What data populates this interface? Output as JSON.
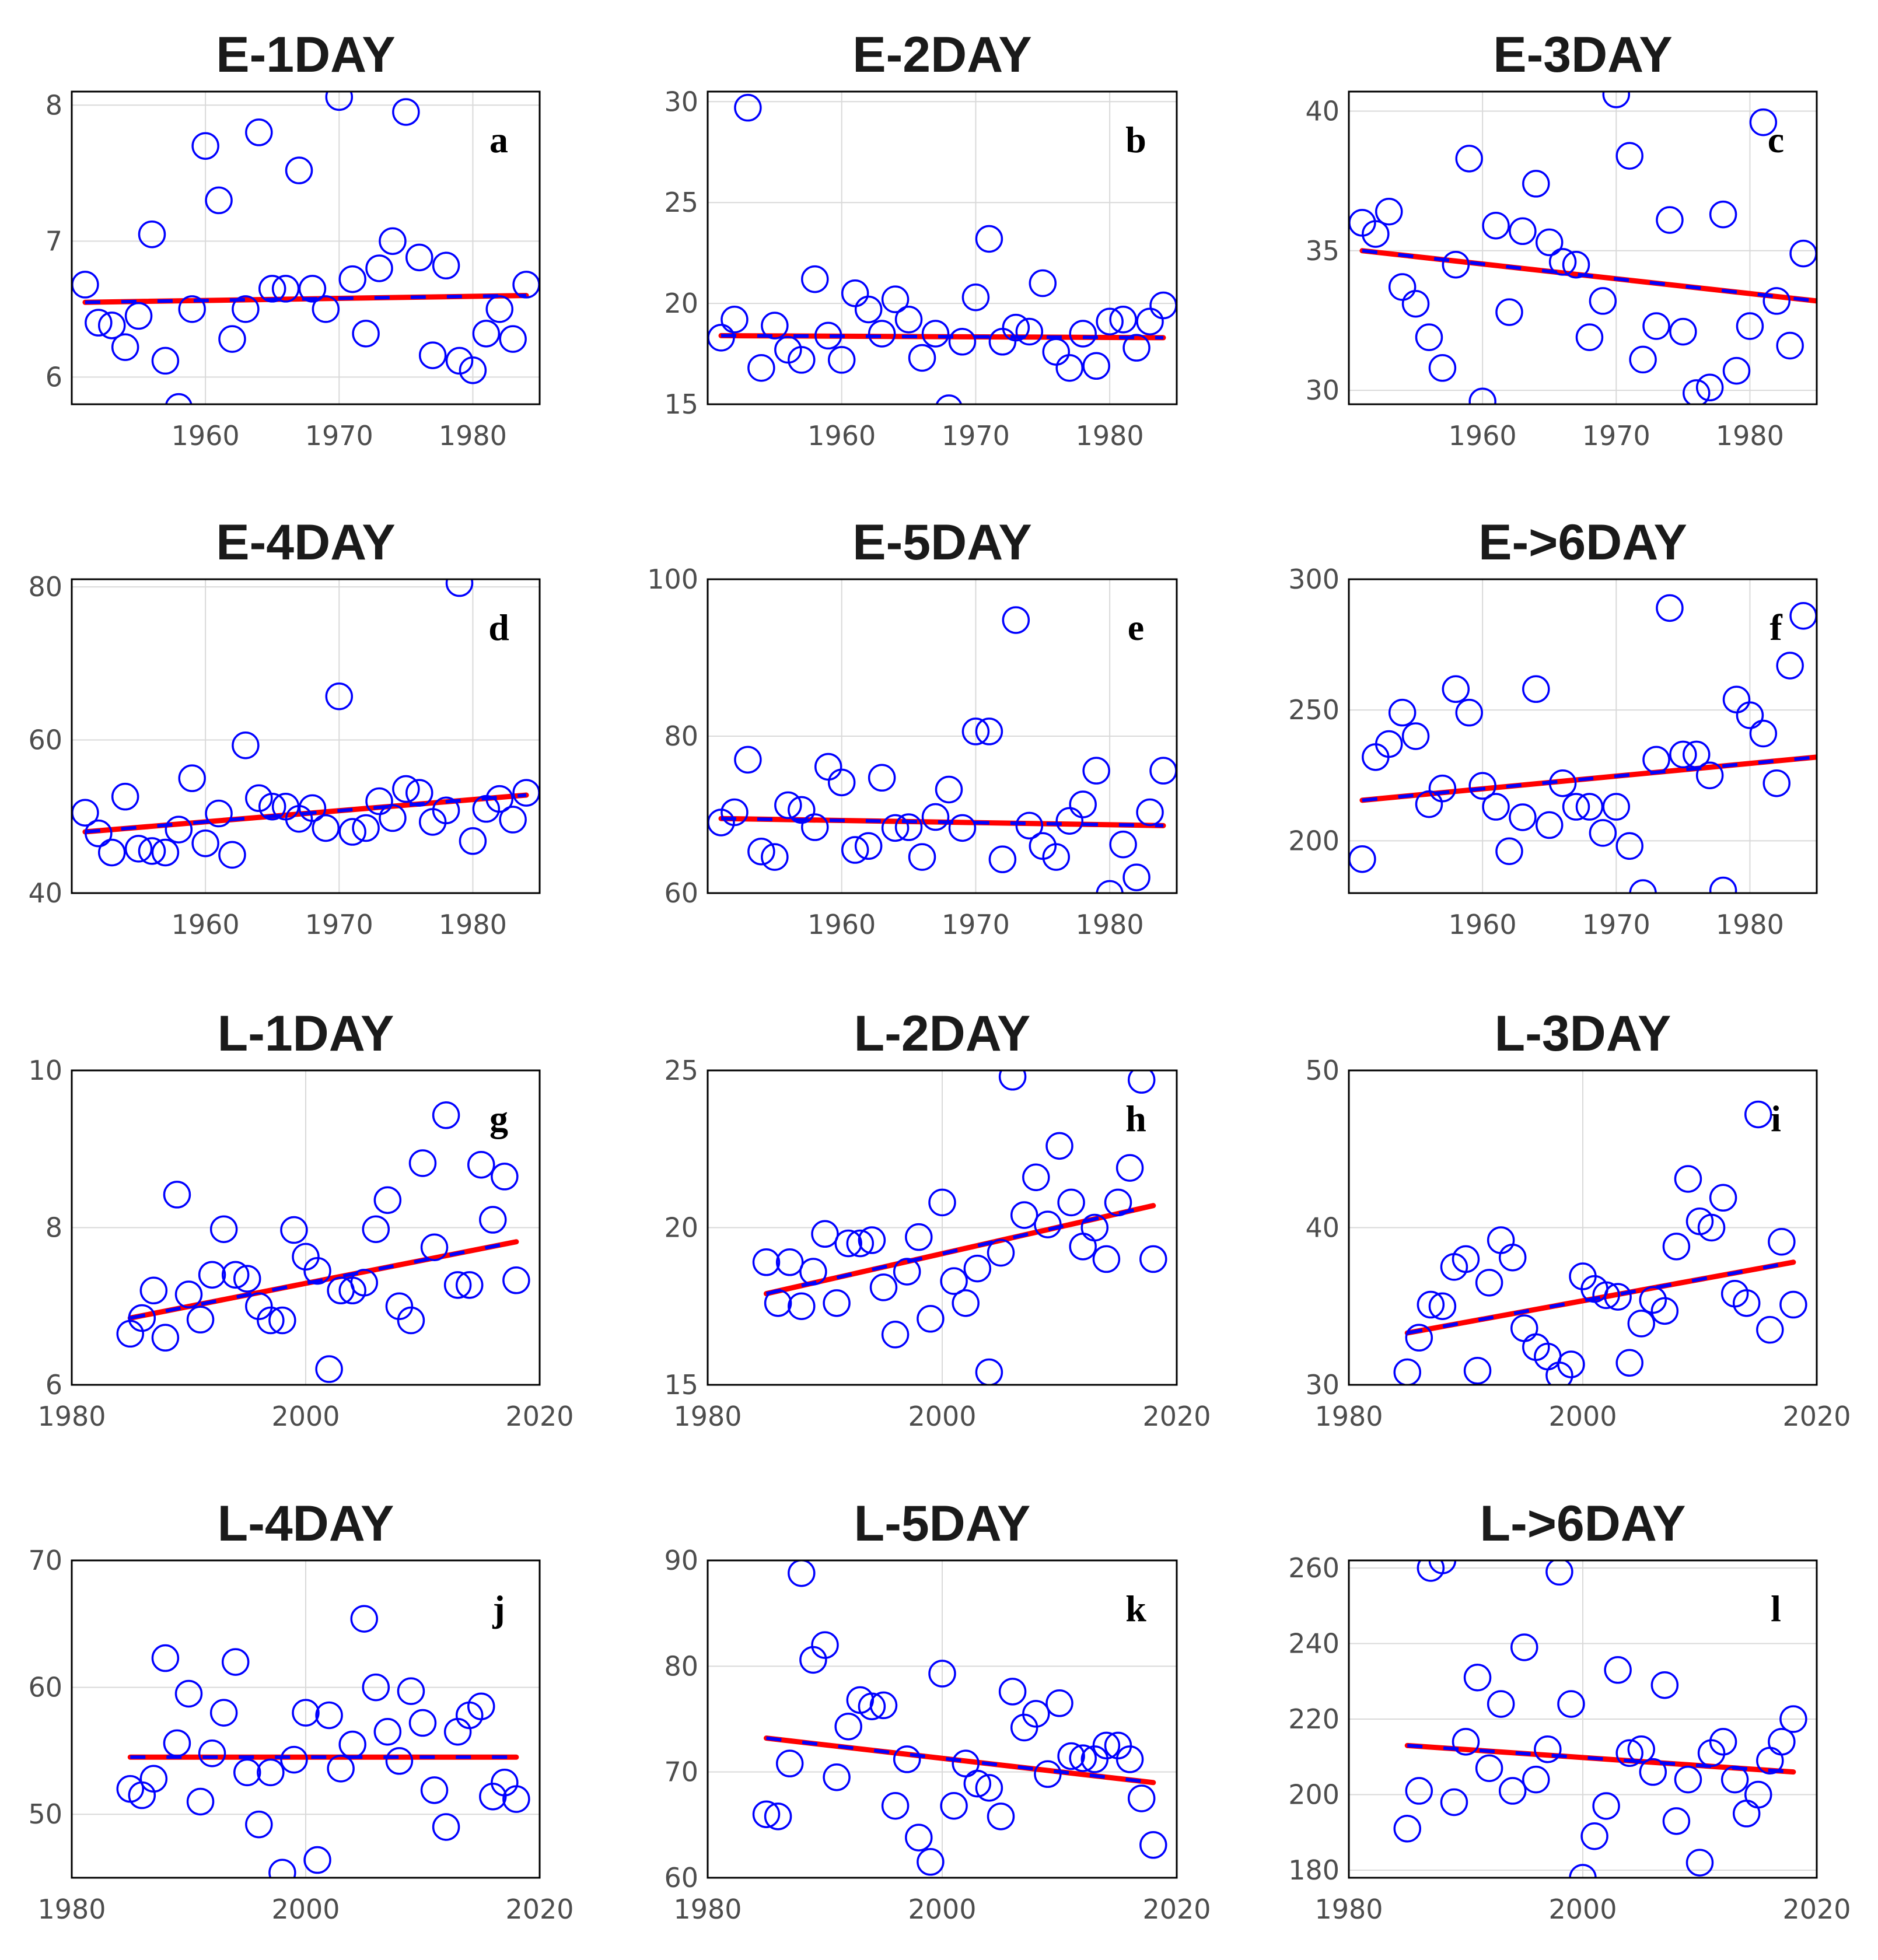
{
  "chart_data": [
    {
      "id": "a",
      "title": "E-1DAY",
      "letter": "a",
      "type": "scatter",
      "xlim": [
        1950,
        1985
      ],
      "ylim": [
        5.8,
        8.1
      ],
      "xticks": [
        1960,
        1970,
        1980
      ],
      "xticklabels": [
        "1960",
        "1970",
        "1980"
      ],
      "yticks": [
        6,
        7,
        8
      ],
      "yticklabels": [
        "6",
        "7",
        "8"
      ],
      "x": [
        1951,
        1952,
        1953,
        1954,
        1955,
        1956,
        1957,
        1958,
        1959,
        1960,
        1961,
        1962,
        1963,
        1964,
        1965,
        1966,
        1967,
        1968,
        1969,
        1970,
        1971,
        1972,
        1973,
        1974,
        1975,
        1976,
        1977,
        1978,
        1979,
        1980,
        1981,
        1982,
        1983,
        1984
      ],
      "y": [
        6.68,
        6.4,
        6.38,
        6.22,
        6.45,
        7.05,
        6.12,
        5.78,
        6.5,
        7.7,
        7.3,
        6.28,
        6.5,
        7.8,
        6.65,
        6.65,
        7.52,
        6.65,
        6.5,
        8.06,
        6.72,
        6.32,
        6.8,
        7.0,
        7.95,
        6.88,
        6.16,
        6.82,
        6.12,
        6.05,
        6.32,
        6.5,
        6.28,
        6.68
      ],
      "trend": {
        "x": [
          1951,
          1984
        ],
        "y": [
          6.55,
          6.6
        ]
      }
    },
    {
      "id": "b",
      "title": "E-2DAY",
      "letter": "b",
      "type": "scatter",
      "xlim": [
        1950,
        1985
      ],
      "ylim": [
        15,
        30.5
      ],
      "xticks": [
        1960,
        1970,
        1980
      ],
      "xticklabels": [
        "1960",
        "1970",
        "1980"
      ],
      "yticks": [
        15,
        20,
        25,
        30
      ],
      "yticklabels": [
        "15",
        "20",
        "25",
        "30"
      ],
      "x": [
        1951,
        1952,
        1953,
        1954,
        1955,
        1956,
        1957,
        1958,
        1959,
        1960,
        1961,
        1962,
        1963,
        1964,
        1965,
        1966,
        1967,
        1968,
        1969,
        1970,
        1971,
        1972,
        1973,
        1974,
        1975,
        1976,
        1977,
        1978,
        1979,
        1980,
        1981,
        1982,
        1983,
        1984
      ],
      "y": [
        18.3,
        19.2,
        29.7,
        16.8,
        18.9,
        17.7,
        17.2,
        21.2,
        18.4,
        17.2,
        20.5,
        19.7,
        18.5,
        20.2,
        19.2,
        17.3,
        18.5,
        14.8,
        18.1,
        20.3,
        23.2,
        18.1,
        18.8,
        18.6,
        21.0,
        17.6,
        16.8,
        18.5,
        16.9,
        19.1,
        19.2,
        17.8,
        19.1,
        19.9
      ],
      "trend": {
        "x": [
          1951,
          1984
        ],
        "y": [
          18.4,
          18.3
        ]
      }
    },
    {
      "id": "c",
      "title": "E-3DAY",
      "letter": "c",
      "type": "scatter",
      "xlim": [
        1950,
        1985
      ],
      "ylim": [
        29.5,
        40.7
      ],
      "xticks": [
        1960,
        1970,
        1980
      ],
      "xticklabels": [
        "1960",
        "1970",
        "1980"
      ],
      "yticks": [
        30,
        35,
        40
      ],
      "yticklabels": [
        "30",
        "35",
        "40"
      ],
      "x": [
        1951,
        1952,
        1953,
        1954,
        1955,
        1956,
        1957,
        1958,
        1959,
        1960,
        1961,
        1962,
        1963,
        1964,
        1965,
        1966,
        1967,
        1968,
        1969,
        1970,
        1971,
        1972,
        1973,
        1974,
        1975,
        1976,
        1977,
        1978,
        1979,
        1980,
        1981,
        1982,
        1983,
        1984
      ],
      "y": [
        36.0,
        35.6,
        36.4,
        33.7,
        33.1,
        31.9,
        30.8,
        34.5,
        38.3,
        29.6,
        35.9,
        32.8,
        35.7,
        37.4,
        35.3,
        34.6,
        34.5,
        31.9,
        33.2,
        40.6,
        38.4,
        31.1,
        32.3,
        36.1,
        32.1,
        29.9,
        30.1,
        36.3,
        30.7,
        32.3,
        39.6,
        33.2,
        31.6,
        34.9
      ],
      "trend": {
        "x": [
          1951,
          1985
        ],
        "y": [
          35.0,
          33.2
        ]
      }
    },
    {
      "id": "d",
      "title": "E-4DAY",
      "letter": "d",
      "type": "scatter",
      "xlim": [
        1950,
        1985
      ],
      "ylim": [
        40,
        81
      ],
      "xticks": [
        1960,
        1970,
        1980
      ],
      "xticklabels": [
        "1960",
        "1970",
        "1980"
      ],
      "yticks": [
        40,
        60,
        80
      ],
      "yticklabels": [
        "40",
        "60",
        "80"
      ],
      "x": [
        1951,
        1952,
        1953,
        1954,
        1955,
        1956,
        1957,
        1958,
        1959,
        1960,
        1961,
        1962,
        1963,
        1964,
        1965,
        1966,
        1967,
        1968,
        1969,
        1970,
        1971,
        1972,
        1973,
        1974,
        1975,
        1976,
        1977,
        1978,
        1979,
        1980,
        1981,
        1982,
        1983,
        1984
      ],
      "y": [
        50.5,
        47.8,
        45.3,
        52.6,
        45.8,
        45.5,
        45.3,
        48.3,
        55.0,
        46.5,
        50.4,
        45.0,
        59.3,
        52.4,
        51.3,
        51.3,
        49.7,
        51.1,
        48.5,
        65.7,
        48.0,
        48.5,
        52.0,
        49.8,
        53.6,
        53.1,
        49.3,
        50.8,
        80.5,
        46.8,
        51.0,
        52.3,
        49.6,
        53.1
      ],
      "trend": {
        "x": [
          1951,
          1984
        ],
        "y": [
          48.0,
          52.8
        ]
      }
    },
    {
      "id": "e",
      "title": "E-5DAY",
      "letter": "e",
      "type": "scatter",
      "xlim": [
        1950,
        1985
      ],
      "ylim": [
        60,
        100
      ],
      "xticks": [
        1960,
        1970,
        1980
      ],
      "xticklabels": [
        "1960",
        "1970",
        "1980"
      ],
      "yticks": [
        60,
        80,
        100
      ],
      "yticklabels": [
        "60",
        "80",
        "100"
      ],
      "x": [
        1951,
        1952,
        1953,
        1954,
        1955,
        1956,
        1957,
        1958,
        1959,
        1960,
        1961,
        1962,
        1963,
        1964,
        1965,
        1966,
        1967,
        1968,
        1969,
        1970,
        1971,
        1972,
        1973,
        1974,
        1975,
        1976,
        1977,
        1978,
        1979,
        1980,
        1981,
        1982,
        1983,
        1984
      ],
      "y": [
        69.0,
        70.3,
        77.0,
        65.3,
        64.6,
        71.2,
        70.6,
        68.4,
        76.1,
        74.1,
        65.5,
        66.0,
        74.7,
        68.3,
        68.4,
        64.6,
        69.7,
        73.2,
        68.3,
        80.6,
        80.6,
        64.3,
        94.8,
        68.6,
        66.0,
        64.6,
        69.2,
        71.3,
        75.6,
        59.9,
        66.2,
        62.0,
        70.3,
        75.6
      ],
      "trend": {
        "x": [
          1951,
          1984
        ],
        "y": [
          69.5,
          68.6
        ]
      }
    },
    {
      "id": "f",
      "title": "E->6DAY",
      "letter": "f",
      "type": "scatter",
      "xlim": [
        1950,
        1985
      ],
      "ylim": [
        180,
        300
      ],
      "xticks": [
        1960,
        1970,
        1980
      ],
      "xticklabels": [
        "1960",
        "1970",
        "1980"
      ],
      "yticks": [
        200,
        250,
        300
      ],
      "yticklabels": [
        "200",
        "250",
        "300"
      ],
      "x": [
        1951,
        1952,
        1953,
        1954,
        1955,
        1956,
        1957,
        1958,
        1959,
        1960,
        1961,
        1962,
        1963,
        1964,
        1965,
        1966,
        1967,
        1968,
        1969,
        1970,
        1971,
        1972,
        1973,
        1974,
        1975,
        1976,
        1977,
        1978,
        1979,
        1980,
        1981,
        1982,
        1983,
        1984
      ],
      "y": [
        193,
        232,
        237,
        249,
        240,
        214,
        220,
        258,
        249,
        221,
        213,
        196,
        209,
        258,
        206,
        222,
        213,
        213,
        203,
        213,
        198,
        180,
        231,
        289,
        233,
        233,
        225,
        181,
        254,
        248,
        241,
        222,
        267,
        286
      ],
      "trend": {
        "x": [
          1951,
          1985
        ],
        "y": [
          215.5,
          232
        ]
      }
    },
    {
      "id": "g",
      "title": "L-1DAY",
      "letter": "g",
      "type": "scatter",
      "xlim": [
        1980,
        2020
      ],
      "ylim": [
        6,
        10
      ],
      "xticks": [
        1980,
        2000,
        2020
      ],
      "xticklabels": [
        "1980",
        "2000",
        "2020"
      ],
      "yticks": [
        6,
        8,
        10
      ],
      "yticklabels": [
        "6",
        "8",
        "10"
      ],
      "x": [
        1985,
        1986,
        1987,
        1988,
        1989,
        1990,
        1991,
        1992,
        1993,
        1994,
        1995,
        1996,
        1997,
        1998,
        1999,
        2000,
        2001,
        2002,
        2003,
        2004,
        2005,
        2006,
        2007,
        2008,
        2009,
        2010,
        2011,
        2012,
        2013,
        2014,
        2015,
        2016,
        2017,
        2018
      ],
      "y": [
        6.65,
        6.85,
        7.2,
        6.6,
        8.42,
        7.15,
        6.83,
        7.4,
        7.98,
        7.4,
        7.35,
        7.0,
        6.82,
        6.82,
        7.97,
        7.63,
        7.45,
        6.2,
        7.2,
        7.2,
        7.3,
        7.98,
        8.35,
        7.0,
        6.82,
        8.82,
        7.75,
        9.43,
        7.27,
        7.27,
        8.8,
        8.1,
        8.65,
        7.33
      ],
      "trend": {
        "x": [
          1985,
          2018
        ],
        "y": [
          6.85,
          7.82
        ]
      }
    },
    {
      "id": "h",
      "title": "L-2DAY",
      "letter": "h",
      "type": "scatter",
      "xlim": [
        1980,
        2020
      ],
      "ylim": [
        15,
        25
      ],
      "xticks": [
        1980,
        2000,
        2020
      ],
      "xticklabels": [
        "1980",
        "2000",
        "2020"
      ],
      "yticks": [
        15,
        20,
        25
      ],
      "yticklabels": [
        "15",
        "20",
        "25"
      ],
      "x": [
        1985,
        1986,
        1987,
        1988,
        1989,
        1990,
        1991,
        1992,
        1993,
        1994,
        1995,
        1996,
        1997,
        1998,
        1999,
        2000,
        2001,
        2002,
        2003,
        2004,
        2005,
        2006,
        2007,
        2008,
        2009,
        2010,
        2011,
        2012,
        2013,
        2014,
        2015,
        2016,
        2017,
        2018
      ],
      "y": [
        18.9,
        17.6,
        18.9,
        17.5,
        18.6,
        19.8,
        17.6,
        19.5,
        19.5,
        19.6,
        18.1,
        16.6,
        18.6,
        19.7,
        17.1,
        20.8,
        18.3,
        17.6,
        18.7,
        15.4,
        19.2,
        24.8,
        20.4,
        21.6,
        20.1,
        22.6,
        20.8,
        19.4,
        20.0,
        19.0,
        20.8,
        21.9,
        24.7,
        19.0
      ],
      "trend": {
        "x": [
          1985,
          2018
        ],
        "y": [
          17.9,
          20.7
        ]
      }
    },
    {
      "id": "i",
      "title": "L-3DAY",
      "letter": "i",
      "type": "scatter",
      "xlim": [
        1980,
        2020
      ],
      "ylim": [
        30,
        50
      ],
      "xticks": [
        1980,
        2000,
        2020
      ],
      "xticklabels": [
        "1980",
        "2000",
        "2020"
      ],
      "yticks": [
        30,
        40,
        50
      ],
      "yticklabels": [
        "30",
        "40",
        "50"
      ],
      "x": [
        1985,
        1986,
        1987,
        1988,
        1989,
        1990,
        1991,
        1992,
        1993,
        1994,
        1995,
        1996,
        1997,
        1998,
        1999,
        2000,
        2001,
        2002,
        2003,
        2004,
        2005,
        2006,
        2007,
        2008,
        2009,
        2010,
        2011,
        2012,
        2013,
        2014,
        2015,
        2016,
        2017,
        2018
      ],
      "y": [
        30.8,
        33.0,
        35.1,
        35.0,
        37.5,
        38.0,
        30.9,
        36.5,
        39.2,
        38.1,
        33.6,
        32.4,
        31.8,
        30.6,
        31.3,
        36.9,
        36.1,
        35.7,
        35.6,
        31.4,
        33.9,
        35.4,
        34.7,
        38.8,
        43.1,
        40.4,
        40.0,
        41.9,
        35.8,
        35.2,
        47.2,
        33.5,
        39.1,
        35.1
      ],
      "trend": {
        "x": [
          1985,
          2018
        ],
        "y": [
          33.3,
          37.8
        ]
      }
    },
    {
      "id": "j",
      "title": "L-4DAY",
      "letter": "j",
      "type": "scatter",
      "xlim": [
        1980,
        2020
      ],
      "ylim": [
        45,
        70
      ],
      "xticks": [
        1980,
        2000,
        2020
      ],
      "xticklabels": [
        "1980",
        "2000",
        "2020"
      ],
      "yticks": [
        50,
        60,
        70
      ],
      "yticklabels": [
        "50",
        "60",
        "70"
      ],
      "x": [
        1985,
        1986,
        1987,
        1988,
        1989,
        1990,
        1991,
        1992,
        1993,
        1994,
        1995,
        1996,
        1997,
        1998,
        1999,
        2000,
        2001,
        2002,
        2003,
        2004,
        2005,
        2006,
        2007,
        2008,
        2009,
        2010,
        2011,
        2012,
        2013,
        2014,
        2015,
        2016,
        2017,
        2018
      ],
      "y": [
        52.0,
        51.5,
        52.8,
        62.3,
        55.6,
        59.5,
        51.0,
        54.8,
        58.0,
        62.0,
        53.3,
        49.2,
        53.3,
        45.4,
        54.3,
        58.0,
        46.4,
        57.8,
        53.6,
        55.5,
        65.4,
        60.0,
        56.5,
        54.2,
        59.7,
        57.2,
        51.9,
        49.0,
        56.5,
        57.8,
        58.5,
        51.4,
        52.5,
        51.2
      ],
      "trend": {
        "x": [
          1985,
          2018
        ],
        "y": [
          54.5,
          54.5
        ]
      }
    },
    {
      "id": "k",
      "title": "L-5DAY",
      "letter": "k",
      "type": "scatter",
      "xlim": [
        1980,
        2020
      ],
      "ylim": [
        60,
        90
      ],
      "xticks": [
        1980,
        2000,
        2020
      ],
      "xticklabels": [
        "1980",
        "2000",
        "2020"
      ],
      "yticks": [
        60,
        70,
        80,
        90
      ],
      "yticklabels": [
        "60",
        "70",
        "80",
        "90"
      ],
      "x": [
        1985,
        1986,
        1987,
        1988,
        1989,
        1990,
        1991,
        1992,
        1993,
        1994,
        1995,
        1996,
        1997,
        1998,
        1999,
        2000,
        2001,
        2002,
        2003,
        2004,
        2005,
        2006,
        2007,
        2008,
        2009,
        2010,
        2011,
        2012,
        2013,
        2014,
        2015,
        2016,
        2017,
        2018
      ],
      "y": [
        66.0,
        65.8,
        70.8,
        88.8,
        80.6,
        82.0,
        69.5,
        74.3,
        76.8,
        76.2,
        76.3,
        66.8,
        71.2,
        63.8,
        61.5,
        79.3,
        66.8,
        70.8,
        68.9,
        68.5,
        65.8,
        77.6,
        74.2,
        75.5,
        69.8,
        76.5,
        71.5,
        71.3,
        71.2,
        72.5,
        72.5,
        71.2,
        67.5,
        63.1
      ],
      "trend": {
        "x": [
          1985,
          2018
        ],
        "y": [
          73.2,
          69.0
        ]
      }
    },
    {
      "id": "l",
      "title": "L->6DAY",
      "letter": "l",
      "type": "scatter",
      "xlim": [
        1980,
        2020
      ],
      "ylim": [
        178,
        262
      ],
      "xticks": [
        1980,
        2000,
        2020
      ],
      "xticklabels": [
        "1980",
        "2000",
        "2020"
      ],
      "yticks": [
        180,
        200,
        220,
        240,
        260
      ],
      "yticklabels": [
        "180",
        "200",
        "220",
        "240",
        "260"
      ],
      "x": [
        1985,
        1986,
        1987,
        1988,
        1989,
        1990,
        1991,
        1992,
        1993,
        1994,
        1995,
        1996,
        1997,
        1998,
        1999,
        2000,
        2001,
        2002,
        2003,
        2004,
        2005,
        2006,
        2007,
        2008,
        2009,
        2010,
        2011,
        2012,
        2013,
        2014,
        2015,
        2016,
        2017,
        2018
      ],
      "y": [
        191,
        201,
        260,
        262,
        198,
        214,
        231,
        207,
        224,
        201,
        239,
        204,
        212,
        259,
        224,
        178,
        189,
        197,
        233,
        211,
        212,
        206,
        229,
        193,
        204,
        182,
        211,
        214,
        204,
        195,
        200,
        209,
        214,
        220
      ],
      "trend": {
        "x": [
          1985,
          2018
        ],
        "y": [
          213,
          206
        ]
      }
    }
  ]
}
